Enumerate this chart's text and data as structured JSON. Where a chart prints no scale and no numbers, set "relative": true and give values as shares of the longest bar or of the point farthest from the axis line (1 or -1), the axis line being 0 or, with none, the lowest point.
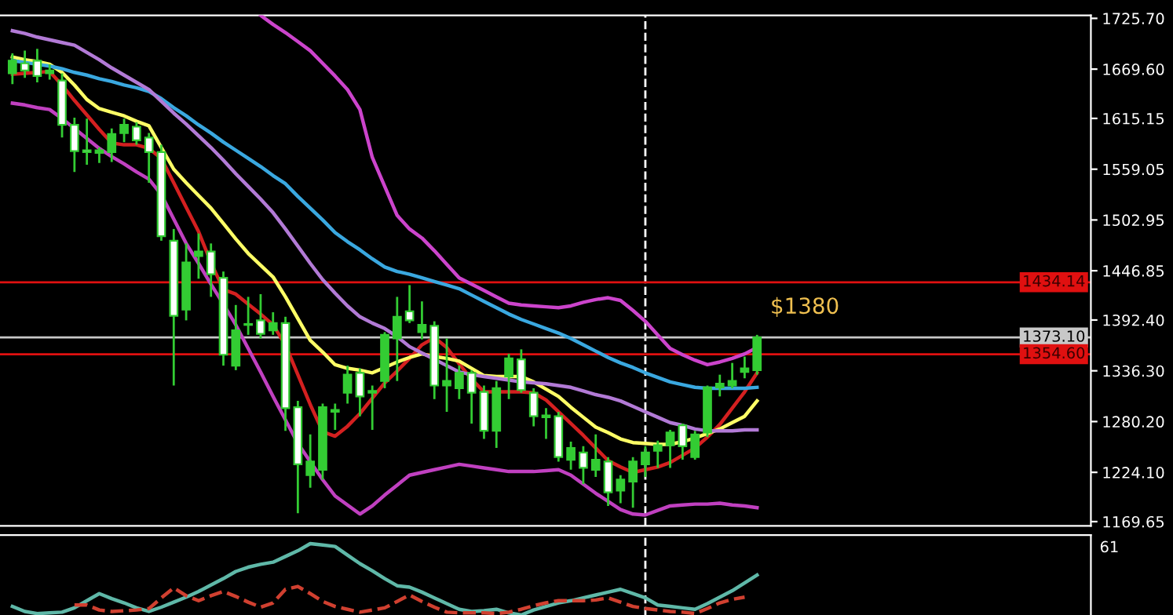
{
  "chart_data": [
    {
      "type": "candlestick",
      "color": "#33cc33",
      "tick_labels": "y",
      "categories": [
        null,
        null,
        null,
        null,
        null,
        null,
        null,
        null,
        null,
        null,
        null,
        null,
        null,
        null,
        null,
        null,
        null,
        null,
        null,
        null,
        null,
        null,
        null,
        null,
        null,
        null,
        null,
        null,
        null,
        null,
        null,
        null,
        null,
        null,
        null,
        null,
        null,
        null,
        null,
        null,
        null,
        null,
        null,
        null,
        null,
        null,
        null,
        null,
        null,
        null,
        null,
        null,
        null,
        null,
        null,
        null,
        null,
        null,
        null,
        null,
        null
      ],
      "ohlc": [
        [
          1665,
          1687,
          1653,
          1679
        ],
        [
          1676,
          1690,
          1660,
          1668
        ],
        [
          1679,
          1692,
          1655,
          1662
        ],
        [
          1665,
          1675,
          1658,
          1668
        ],
        [
          1657,
          1665,
          1594,
          1608
        ],
        [
          1608,
          1616,
          1556,
          1579
        ],
        [
          1580,
          1615,
          1564,
          1578
        ],
        [
          1577,
          1583,
          1566,
          1580
        ],
        [
          1578,
          1604,
          1567,
          1598
        ],
        [
          1599,
          1615,
          1589,
          1608
        ],
        [
          1606,
          1611,
          1586,
          1591
        ],
        [
          1594,
          1599,
          1544,
          1578
        ],
        [
          1578,
          1586,
          1480,
          1485
        ],
        [
          1480,
          1493,
          1320,
          1397
        ],
        [
          1404,
          1477,
          1392,
          1456
        ],
        [
          1463,
          1488,
          1438,
          1468
        ],
        [
          1468,
          1477,
          1418,
          1443
        ],
        [
          1439,
          1446,
          1342,
          1354
        ],
        [
          1342,
          1409,
          1337,
          1381
        ],
        [
          1387,
          1418,
          1376,
          1388
        ],
        [
          1392,
          1421,
          1372,
          1377
        ],
        [
          1381,
          1401,
          1376,
          1389
        ],
        [
          1389,
          1396,
          1270,
          1295
        ],
        [
          1296,
          1303,
          1179,
          1233
        ],
        [
          1221,
          1266,
          1207,
          1236
        ],
        [
          1227,
          1300,
          1216,
          1296
        ],
        [
          1291,
          1300,
          1271,
          1293
        ],
        [
          1312,
          1342,
          1300,
          1332
        ],
        [
          1334,
          1339,
          1286,
          1308
        ],
        [
          1314,
          1320,
          1271,
          1312
        ],
        [
          1325,
          1379,
          1317,
          1376
        ],
        [
          1372,
          1418,
          1325,
          1396
        ],
        [
          1402,
          1431,
          1389,
          1392
        ],
        [
          1379,
          1413,
          1371,
          1387
        ],
        [
          1386,
          1391,
          1305,
          1320
        ],
        [
          1320,
          1372,
          1291,
          1325
        ],
        [
          1317,
          1342,
          1305,
          1334
        ],
        [
          1334,
          1337,
          1278,
          1312
        ],
        [
          1313,
          1320,
          1261,
          1270
        ],
        [
          1270,
          1325,
          1251,
          1317
        ],
        [
          1330,
          1355,
          1305,
          1350
        ],
        [
          1349,
          1360,
          1312,
          1315
        ],
        [
          1312,
          1317,
          1275,
          1286
        ],
        [
          1287,
          1295,
          1261,
          1285
        ],
        [
          1286,
          1291,
          1236,
          1241
        ],
        [
          1238,
          1258,
          1227,
          1251
        ],
        [
          1246,
          1253,
          1211,
          1229
        ],
        [
          1227,
          1266,
          1219,
          1238
        ],
        [
          1236,
          1241,
          1187,
          1202
        ],
        [
          1204,
          1221,
          1190,
          1216
        ],
        [
          1214,
          1241,
          1185,
          1236
        ],
        [
          1233,
          1253,
          1219,
          1246
        ],
        [
          1248,
          1259,
          1229,
          1254
        ],
        [
          1254,
          1271,
          1229,
          1268
        ],
        [
          1276,
          1278,
          1238,
          1253
        ],
        [
          1241,
          1270,
          1238,
          1266
        ],
        [
          1268,
          1320,
          1263,
          1318
        ],
        [
          1318,
          1332,
          1308,
          1322
        ],
        [
          1320,
          1345,
          1317,
          1325
        ],
        [
          1335,
          1352,
          1328,
          1339
        ],
        [
          1337,
          1376,
          1332,
          1373.1
        ]
      ],
      "series": [
        {
          "type": "line",
          "color": "#d42020",
          "values": [
            1664,
            1665,
            1666,
            1667,
            1652,
            1635,
            1619,
            1603,
            1588,
            1586,
            1586,
            1582,
            1571,
            1544,
            1517,
            1490,
            1456,
            1426,
            1421,
            1410,
            1399,
            1387,
            1365,
            1332,
            1299,
            1269,
            1264,
            1275,
            1289,
            1306,
            1323,
            1336,
            1350,
            1365,
            1373,
            1362,
            1344,
            1327,
            1313,
            1313,
            1313,
            1313,
            1312,
            1304,
            1291,
            1278,
            1265,
            1251,
            1237,
            1230,
            1224,
            1227,
            1230,
            1235,
            1243,
            1251,
            1263,
            1277,
            1295,
            1313,
            1334
          ]
        },
        {
          "type": "line",
          "color": "#ffff66",
          "values": [
            1683,
            1680,
            1678,
            1675,
            1666,
            1652,
            1636,
            1626,
            1622,
            1618,
            1612,
            1607,
            1583,
            1559,
            1544,
            1530,
            1516,
            1499,
            1482,
            1466,
            1453,
            1440,
            1418,
            1394,
            1370,
            1357,
            1343,
            1339,
            1337,
            1334,
            1340,
            1346,
            1351,
            1355,
            1352,
            1350,
            1347,
            1339,
            1331,
            1330,
            1330,
            1330,
            1324,
            1316,
            1308,
            1296,
            1285,
            1274,
            1268,
            1261,
            1257,
            1256,
            1255,
            1255,
            1258,
            1262,
            1267,
            1272,
            1279,
            1286,
            1303
          ]
        },
        {
          "type": "line",
          "color": "#3aa8e0",
          "values": [
            1679,
            1677,
            1675,
            1673,
            1670,
            1666,
            1663,
            1659,
            1656,
            1652,
            1649,
            1645,
            1637,
            1627,
            1618,
            1608,
            1599,
            1589,
            1580,
            1571,
            1562,
            1552,
            1543,
            1529,
            1516,
            1503,
            1489,
            1479,
            1470,
            1460,
            1451,
            1446,
            1443,
            1439,
            1435,
            1431,
            1427,
            1420,
            1413,
            1406,
            1399,
            1393,
            1388,
            1383,
            1378,
            1372,
            1365,
            1358,
            1351,
            1345,
            1340,
            1334,
            1329,
            1324,
            1321,
            1318,
            1317,
            1317,
            1317,
            1317,
            1318
          ]
        },
        {
          "type": "line",
          "color": "#cc44cc",
          "values": [
            null,
            null,
            null,
            null,
            null,
            null,
            null,
            null,
            null,
            null,
            null,
            null,
            null,
            null,
            null,
            null,
            null,
            null,
            null,
            null,
            1729,
            1719,
            1710,
            1700,
            1690,
            1676,
            1662,
            1647,
            1625,
            1572,
            1540,
            1508,
            1493,
            1483,
            1469,
            1454,
            1439,
            1432,
            1425,
            1418,
            1411,
            1409,
            1408,
            1407,
            1406,
            1408,
            1412,
            1415,
            1417,
            1414,
            1403,
            1391,
            1376,
            1361,
            1354,
            1348,
            1343,
            1346,
            1350,
            1355,
            1362
          ]
        },
        {
          "type": "line",
          "color": "#b27ad6",
          "values": [
            1712,
            1709,
            1705,
            1702,
            1699,
            1696,
            1688,
            1680,
            1671,
            1663,
            1655,
            1647,
            1634,
            1621,
            1609,
            1596,
            1583,
            1569,
            1554,
            1540,
            1526,
            1511,
            1493,
            1474,
            1455,
            1437,
            1422,
            1408,
            1396,
            1389,
            1383,
            1374,
            1363,
            1356,
            1349,
            1342,
            1335,
            1332,
            1330,
            1328,
            1326,
            1324,
            1323,
            1322,
            1320,
            1318,
            1314,
            1310,
            1307,
            1303,
            1297,
            1291,
            1285,
            1279,
            1276,
            1272,
            1270,
            1270,
            1270,
            1271,
            1271
          ]
        },
        {
          "type": "line",
          "color": "#c040c0",
          "values": [
            1632,
            1630,
            1627,
            1625,
            1615,
            1604,
            1593,
            1582,
            1573,
            1565,
            1556,
            1548,
            1531,
            1504,
            1477,
            1455,
            1432,
            1410,
            1387,
            1361,
            1335,
            1308,
            1282,
            1256,
            1236,
            1216,
            1198,
            1188,
            1178,
            1187,
            1199,
            1210,
            1221,
            1224,
            1227,
            1230,
            1233,
            1231,
            1229,
            1227,
            1225,
            1225,
            1225,
            1226,
            1227,
            1221,
            1211,
            1201,
            1192,
            1183,
            1178,
            1177,
            1182,
            1187,
            1188,
            1189,
            1189,
            1190,
            1188,
            1187,
            1185
          ]
        }
      ],
      "ylim": [
        1165,
        1729
      ],
      "yticks": [
        {
          "value": 1725.7,
          "label": "1725.70"
        },
        {
          "value": 1669.6,
          "label": "1669.60"
        },
        {
          "value": 1615.15,
          "label": "1615.15"
        },
        {
          "value": 1559.05,
          "label": "1559.05"
        },
        {
          "value": 1502.95,
          "label": "1502.95"
        },
        {
          "value": 1446.85,
          "label": "1446.85"
        },
        {
          "value": 1392.4,
          "label": "1392.40"
        },
        {
          "value": 1336.3,
          "label": "1336.30"
        },
        {
          "value": 1280.2,
          "label": "1280.20"
        },
        {
          "value": 1224.1,
          "label": "1224.10"
        },
        {
          "value": 1169.65,
          "label": "1169.65"
        }
      ],
      "ref_lines": [
        {
          "axis": "y",
          "value": 1434.14,
          "label": "1434.14",
          "color": "#e01010"
        },
        {
          "axis": "y",
          "value": 1373.1,
          "label": "1373.10",
          "color": "#c8c8c8"
        },
        {
          "axis": "y",
          "value": 1354.6,
          "label": "1354.60",
          "color": "#e01010"
        }
      ],
      "annotations": [
        {
          "text": "$1380",
          "y": 1380
        }
      ]
    },
    {
      "type": "line",
      "relative": true,
      "categories": [
        null,
        null,
        null,
        null,
        null,
        null,
        null,
        null,
        null,
        null,
        null,
        null,
        null,
        null,
        null,
        null,
        null,
        null,
        null,
        null,
        null,
        null,
        null,
        null,
        null,
        null,
        null,
        null,
        null,
        null,
        null,
        null,
        null,
        null,
        null,
        null,
        null,
        null,
        null,
        null,
        null,
        null,
        null,
        null,
        null,
        null,
        null,
        null,
        null,
        null,
        null,
        null,
        null,
        null,
        null,
        null,
        null,
        null,
        null,
        null,
        null
      ],
      "series": [
        {
          "color": "#5fb8a8",
          "line_style": "solid",
          "values": [
            0.12,
            0.05,
            0.02,
            0.03,
            0.04,
            0.1,
            0.2,
            0.3,
            0.23,
            0.17,
            0.1,
            0.05,
            0.11,
            0.18,
            0.25,
            0.33,
            0.42,
            0.51,
            0.61,
            0.67,
            0.71,
            0.74,
            0.82,
            0.9,
            1.0,
            0.98,
            0.96,
            0.84,
            0.72,
            0.62,
            0.51,
            0.41,
            0.39,
            0.32,
            0.24,
            0.16,
            0.08,
            0.05,
            0.06,
            0.08,
            0.03,
            0,
            0.07,
            0.12,
            0.17,
            0.2,
            0.24,
            0.28,
            0.32,
            0.36,
            0.3,
            0.24,
            0.14,
            0.12,
            0.1,
            0.08,
            0.16,
            0.25,
            0.34,
            0.45,
            0.56
          ]
        },
        {
          "color": "#d04030",
          "line_style": "dashed",
          "values": [
            null,
            null,
            null,
            null,
            null,
            0.14,
            0.14,
            0.07,
            0.05,
            0.06,
            0.07,
            0.09,
            0.24,
            0.38,
            0.27,
            0.2,
            0.27,
            0.33,
            0.26,
            0.18,
            0.11,
            0.17,
            0.36,
            0.4,
            0.3,
            0.19,
            0.12,
            0.08,
            0.04,
            0.07,
            0.1,
            0.19,
            0.28,
            0.19,
            0.11,
            0.04,
            0.03,
            0.03,
            0.03,
            0.02,
            0.04,
            0.08,
            0.13,
            0.17,
            0.2,
            0.2,
            0.2,
            0.21,
            0.24,
            0.18,
            0.12,
            0.09,
            0.07,
            0.05,
            0.04,
            0.02,
            0.09,
            0.17,
            0.22,
            0.25,
            null
          ]
        }
      ],
      "annotations": [
        "61"
      ]
    }
  ]
}
